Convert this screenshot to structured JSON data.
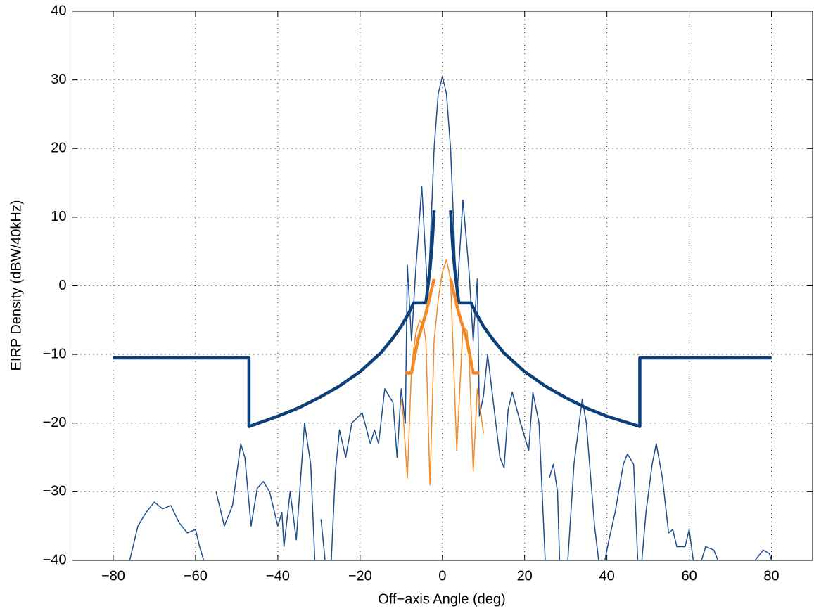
{
  "chart_data": {
    "type": "line",
    "xlabel": "Off−axis Angle (deg)",
    "ylabel": "EIRP Density (dBW/40kHz)",
    "xlim": [
      -90,
      90
    ],
    "ylim": [
      -40,
      40
    ],
    "xticks": [
      {
        "value": -80,
        "label": "−80"
      },
      {
        "value": -60,
        "label": "−60"
      },
      {
        "value": -40,
        "label": "−40"
      },
      {
        "value": -20,
        "label": "−20"
      },
      0,
      20,
      40,
      60,
      80
    ],
    "yticks": [
      {
        "value": -40,
        "label": "−40"
      },
      {
        "value": -30,
        "label": "−30"
      },
      {
        "value": -20,
        "label": "−20"
      },
      {
        "value": -10,
        "label": "−10"
      },
      0,
      10,
      20,
      30,
      40
    ],
    "grid": true,
    "series": [
      {
        "color": "#1f4e8c",
        "width": 1.5,
        "x": [
          -76,
          -74,
          -72,
          -70,
          -68,
          -66,
          -64,
          -62,
          -60,
          -59,
          -58,
          -57,
          -55,
          -53,
          -51,
          -49,
          -48,
          -46.5,
          -45,
          -43.5,
          -42,
          -40,
          -39,
          -38.5,
          -37,
          -35.5,
          -33.5,
          -32,
          -31,
          -30.5,
          -29.5,
          -28.5,
          -27.5,
          -27,
          -26,
          -25,
          -23.5,
          -22,
          -19.5,
          -17.5,
          -16.5,
          -15.5,
          -14,
          -12,
          -11,
          -10,
          -9,
          -8.5,
          -7.5,
          -6.5,
          -5,
          -3.5,
          -2,
          -1,
          0,
          1,
          2,
          3.5,
          5,
          6.5,
          7.5,
          8.5,
          9,
          10,
          11,
          12,
          14,
          15,
          16,
          17,
          19,
          21,
          22,
          23.5,
          25,
          25.5,
          26,
          27,
          28,
          28.5,
          29.5,
          30.5,
          32,
          34,
          35,
          37,
          38,
          39,
          39.5,
          40.5,
          42,
          44,
          45,
          46.5,
          47.5,
          48,
          48.5,
          49.5,
          51,
          52,
          53.5,
          55,
          56,
          57,
          59,
          60,
          61,
          62,
          63,
          64,
          66,
          67,
          72,
          76,
          78,
          79.5,
          80
        ],
        "values": [
          -40,
          -35,
          -33,
          -31.5,
          -32.5,
          -32,
          -34.5,
          -36,
          -35.5,
          -38,
          -40,
          null,
          -30,
          -35,
          -32,
          -23,
          -25,
          -35,
          -29.5,
          -28.5,
          -30,
          -35,
          -33,
          -38,
          -30,
          -37,
          -20,
          -26,
          -40,
          null,
          -34,
          -40,
          null,
          -40,
          -27,
          -21,
          -25,
          -20,
          -18.5,
          -23,
          -21,
          -23,
          -15,
          -17,
          -25,
          -15,
          -20,
          3,
          -8,
          2,
          14.5,
          -2,
          20,
          28,
          30.5,
          28,
          20,
          -2,
          12.5,
          2,
          -8,
          1,
          -19,
          -16,
          -10,
          -15,
          -25,
          -26.5,
          -18,
          -15.5,
          -20,
          -24,
          -15.5,
          -20,
          -40,
          null,
          -28,
          -26,
          -30,
          -40,
          null,
          -40,
          -26,
          -16.5,
          -20,
          -35,
          -40,
          null,
          -40,
          -37,
          -33,
          -26,
          -24.5,
          -26,
          -40,
          null,
          -40,
          -33,
          -26,
          -23,
          -28,
          -36,
          -35.5,
          -38,
          -38,
          -35.5,
          -40,
          null,
          -40,
          -38,
          -38.5,
          -40,
          null,
          -40,
          -38.5,
          -39,
          -40
        ]
      },
      {
        "color": "#f28a25",
        "width": 1.5,
        "x": [
          -10,
          -9.5,
          -8.5,
          -7.5,
          -6.5,
          -5.5,
          -4.5,
          -4,
          -3,
          -2,
          -1,
          0,
          1,
          2,
          3.5,
          5,
          6,
          6.5,
          7.5,
          8.5,
          9,
          10
        ],
        "values": [
          -16.5,
          -19,
          -28,
          -12,
          -7,
          -5,
          -6,
          -8,
          -29,
          -8,
          -2,
          2,
          3.8,
          1,
          -24,
          -6,
          -6.5,
          -10,
          -27,
          -15,
          -17,
          -21.5
        ]
      },
      {
        "color": "#0d3f7a",
        "width": 4.5,
        "x": [
          -80,
          -47,
          -47,
          -40,
          -35,
          -30,
          -25,
          -20,
          -15,
          -12,
          -10,
          -8,
          -7,
          -4,
          -3,
          -2.5,
          -2,
          0,
          2,
          2.5,
          3,
          4,
          7,
          8,
          10,
          12,
          15,
          20,
          25,
          30,
          35,
          40,
          48,
          48,
          80
        ],
        "values": [
          -10.5,
          -10.5,
          -20.5,
          -19,
          -17.8,
          -16.3,
          -14.6,
          -12.5,
          -9.8,
          -7.6,
          -5.9,
          -3.8,
          -2.5,
          -2.5,
          2.5,
          6,
          11,
          null,
          11,
          6,
          2.5,
          -2.5,
          -2.5,
          -3.8,
          -5.9,
          -7.6,
          -9.8,
          -12.5,
          -14.6,
          -16.3,
          -17.8,
          -19,
          -20.5,
          -10.5,
          -10.5
        ]
      },
      {
        "color": "#f28a25",
        "width": 4.5,
        "x": [
          -9,
          -7.5,
          -6,
          -4,
          -3,
          -2,
          0,
          2,
          3,
          4,
          6,
          7.5,
          9
        ],
        "values": [
          -12.7,
          -12.7,
          -8,
          -4,
          -1.5,
          1,
          null,
          1,
          -1.5,
          -4,
          -8,
          -12.7,
          -12.7
        ]
      }
    ]
  }
}
